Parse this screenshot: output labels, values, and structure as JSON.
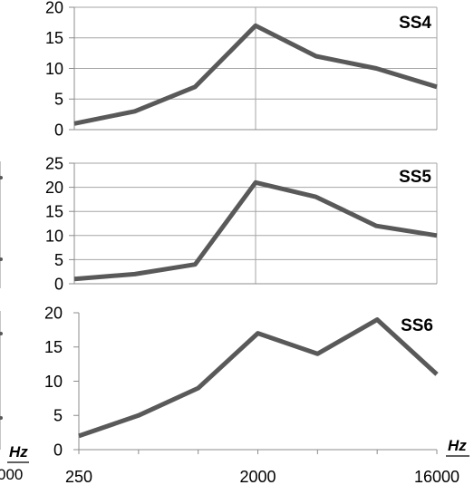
{
  "chart_data": [
    {
      "type": "line",
      "title": "SS4",
      "xlabel": "",
      "ylabel": "",
      "x_ticks": [
        "",
        "",
        "",
        "",
        "",
        "",
        ""
      ],
      "y_ticks": [
        "0",
        "5",
        "10",
        "15",
        "20"
      ],
      "ylim": [
        0,
        20
      ],
      "grid": true,
      "series": [
        {
          "values": [
            1,
            3,
            7,
            17,
            12,
            10,
            7
          ]
        }
      ]
    },
    {
      "type": "line",
      "title": "SS5",
      "xlabel": "",
      "ylabel": "",
      "x_ticks": [
        "",
        "",
        "",
        "",
        "",
        "",
        ""
      ],
      "y_ticks": [
        "0",
        "5",
        "10",
        "15",
        "20",
        "25"
      ],
      "ylim": [
        0,
        25
      ],
      "grid": true,
      "series": [
        {
          "values": [
            1,
            2,
            4,
            21,
            18,
            12,
            10
          ]
        }
      ]
    },
    {
      "type": "line",
      "title": "SS6",
      "xlabel": "Hz",
      "ylabel": "",
      "x_ticks": [
        "250",
        "",
        "",
        "2000",
        "",
        "",
        "16000"
      ],
      "y_ticks": [
        "0",
        "5",
        "10",
        "15",
        "20"
      ],
      "ylim": [
        0,
        20
      ],
      "grid": false,
      "series": [
        {
          "values": [
            2,
            5,
            9,
            17,
            14,
            19,
            11
          ]
        }
      ]
    }
  ],
  "left_fragment": {
    "axis_label": "Hz",
    "tick_label": "000"
  },
  "colors": {
    "series": "#595959",
    "grid": "#a6a6a6",
    "axis": "#8c8c8c"
  }
}
